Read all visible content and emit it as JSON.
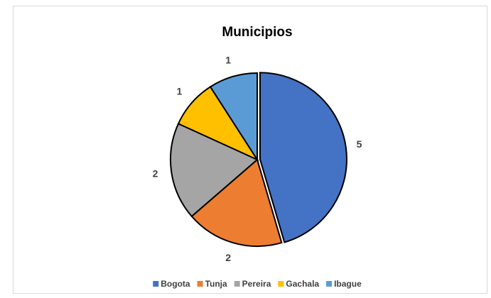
{
  "chart_data": {
    "type": "pie",
    "title": "Municipios",
    "categories": [
      "Bogota",
      "Tunja",
      "Pereira",
      "Gachala",
      "Ibague"
    ],
    "values": [
      5,
      2,
      2,
      1,
      1
    ],
    "colors": [
      "#4472c4",
      "#ed7d31",
      "#a5a5a5",
      "#ffc000",
      "#5b9bd5"
    ],
    "legend": "bottom"
  }
}
